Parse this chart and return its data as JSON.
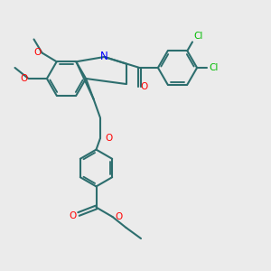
{
  "bg": "#ebebeb",
  "bc": "#2d6e6e",
  "nc": "#0000ff",
  "oc": "#ff0000",
  "clc": "#00bb00",
  "lw": 1.5,
  "fs": 7.5,
  "xlim": [
    0,
    10
  ],
  "ylim": [
    0,
    10
  ]
}
